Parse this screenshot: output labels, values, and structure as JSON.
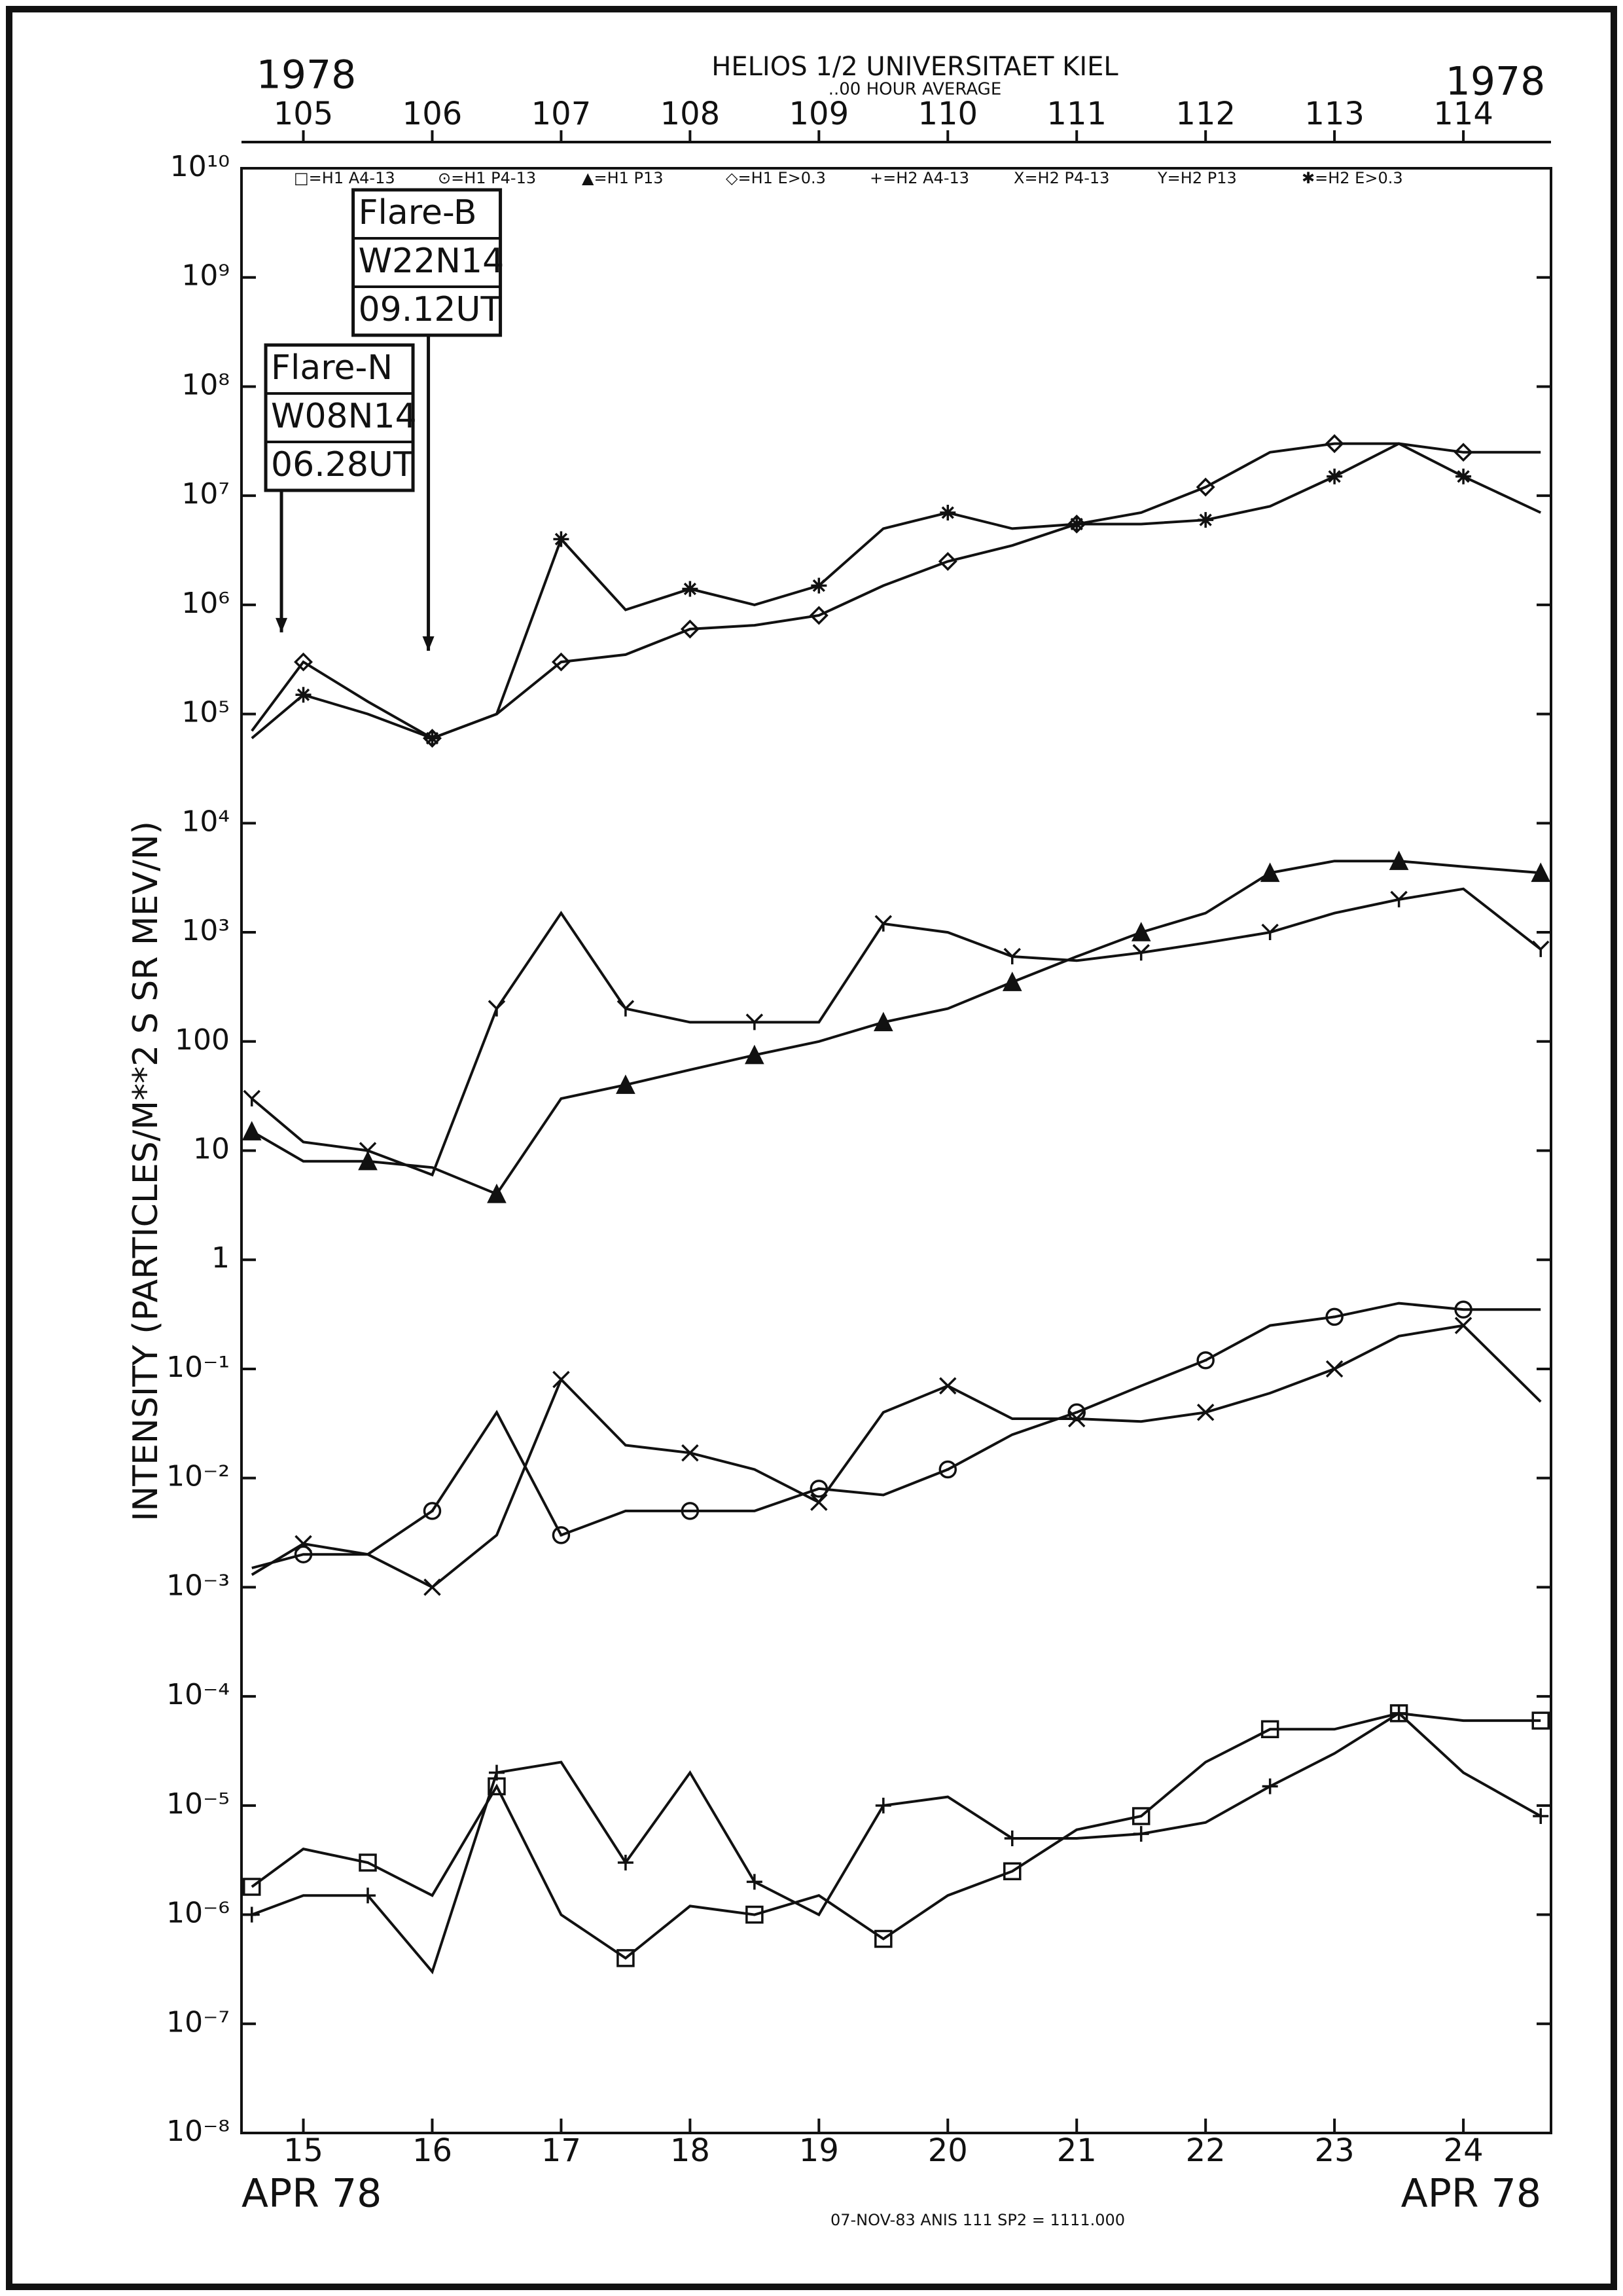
{
  "chart_data": {
    "type": "line",
    "title": "HELIOS 1/2  UNIVERSITAET KIEL",
    "subtitle": "..00 HOUR AVERAGE",
    "year_left": "1978",
    "year_right": "1978",
    "y_label": "INTENSITY (PARTICLES/M**2 S SR MEV/N)",
    "x_label_left": "APR 78",
    "x_label_right": "APR 78",
    "footer": "07-NOV-83 ANIS 111 SP2 = 1111.000",
    "log_y": true,
    "ylim": [
      1e-08,
      10000000000.0
    ],
    "yticks": [
      {
        "value": 10000000000.0,
        "label": "10¹⁰"
      },
      {
        "value": 1000000000.0,
        "label": "10⁹"
      },
      {
        "value": 100000000.0,
        "label": "10⁸"
      },
      {
        "value": 10000000.0,
        "label": "10⁷"
      },
      {
        "value": 1000000.0,
        "label": "10⁶"
      },
      {
        "value": 100000.0,
        "label": "10⁵"
      },
      {
        "value": 10000.0,
        "label": "10⁴"
      },
      {
        "value": 1000,
        "label": "10³"
      },
      100,
      10,
      1,
      {
        "value": 0.1,
        "label": "10⁻¹"
      },
      {
        "value": 0.01,
        "label": "10⁻²"
      },
      {
        "value": 0.001,
        "label": "10⁻³"
      },
      {
        "value": 0.0001,
        "label": "10⁻⁴"
      },
      {
        "value": 1e-05,
        "label": "10⁻⁵"
      },
      {
        "value": 1e-06,
        "label": "10⁻⁶"
      },
      {
        "value": 1e-07,
        "label": "10⁻⁷"
      },
      {
        "value": 1e-08,
        "label": "10⁻⁸"
      }
    ],
    "xlim": [
      14.52,
      24.68
    ],
    "xticks": [
      15,
      16,
      17,
      18,
      19,
      20,
      21,
      22,
      23,
      24
    ],
    "x2lim": [
      104.52,
      114.68
    ],
    "x2ticks": [
      105,
      106,
      107,
      108,
      109,
      110,
      111,
      112,
      113,
      114
    ],
    "x": [
      14.6,
      15,
      15.5,
      16,
      16.5,
      17,
      17.5,
      18,
      18.5,
      19,
      19.5,
      20,
      20.5,
      21,
      21.5,
      22,
      22.5,
      23,
      23.5,
      24,
      24.6
    ],
    "color": "#111111",
    "series": [
      {
        "name": "□=H1 A4-13",
        "marker": "square",
        "values": [
          1.8e-06,
          4e-06,
          3e-06,
          1.5e-06,
          1.5e-05,
          1e-06,
          4e-07,
          1.2e-06,
          1e-06,
          1.5e-06,
          6e-07,
          1.5e-06,
          2.5e-06,
          6e-06,
          8e-06,
          2.5e-05,
          5e-05,
          5e-05,
          7e-05,
          6e-05,
          6e-05
        ]
      },
      {
        "name": "⊙=H1 P4-13",
        "marker": "circle",
        "values": [
          0.0015,
          0.002,
          0.002,
          0.005,
          0.04,
          0.003,
          0.005,
          0.005,
          0.005,
          0.008,
          0.007,
          0.012,
          0.025,
          0.04,
          0.07,
          0.12,
          0.25,
          0.3,
          0.4,
          0.35,
          0.35
        ]
      },
      {
        "name": "▲=H1 P13",
        "marker": "triangle",
        "values": [
          15,
          8,
          8,
          7,
          4,
          30,
          40,
          55,
          75,
          100,
          150,
          200,
          350,
          600,
          1000,
          1500,
          3500,
          4500,
          4500,
          4000,
          3500
        ]
      },
      {
        "name": "◇=H1 E>0.3",
        "marker": "diamond",
        "values": [
          70000,
          300000,
          130000,
          60000,
          100000,
          300000,
          350000,
          600000,
          650000,
          800000,
          1500000,
          2500000,
          3500000,
          5500000,
          7000000,
          12000000,
          25000000,
          30000000,
          30000000,
          25000000,
          25000000
        ]
      },
      {
        "name": "+=H2 A4-13",
        "marker": "plus",
        "values": [
          1e-06,
          1.5e-06,
          1.5e-06,
          3e-07,
          2e-05,
          2.5e-05,
          3e-06,
          2e-05,
          2e-06,
          1e-06,
          1e-05,
          1.2e-05,
          5e-06,
          5e-06,
          5.5e-06,
          7e-06,
          1.5e-05,
          3e-05,
          7e-05,
          2e-05,
          8e-06
        ]
      },
      {
        "name": "X=H2 P4-13",
        "marker": "cross",
        "values": [
          0.0013,
          0.0025,
          0.002,
          0.001,
          0.003,
          0.08,
          0.02,
          0.017,
          0.012,
          0.006,
          0.04,
          0.07,
          0.035,
          0.035,
          0.033,
          0.04,
          0.06,
          0.1,
          0.2,
          0.25,
          0.05
        ]
      },
      {
        "name": "Y=H2 P13",
        "marker": "y",
        "values": [
          30,
          12,
          10,
          6,
          200,
          1500,
          200,
          150,
          150,
          150,
          1200,
          1000,
          600,
          550,
          650,
          800,
          1000,
          1500,
          2000,
          2500,
          700
        ]
      },
      {
        "name": "✱=H2 E>0.3",
        "marker": "asterisk",
        "values": [
          60000,
          150000,
          100000,
          60000,
          100000,
          4000000,
          900000,
          1400000,
          1000000,
          1500000,
          5000000,
          7000000,
          5000000,
          5500000,
          5500000,
          6000000,
          8000000,
          15000000,
          30000000,
          15000000,
          7000000
        ]
      }
    ],
    "annotations": [
      {
        "lines": [
          "Flare-N",
          "W08N14",
          "06.28UT"
        ],
        "x": 14.83,
        "y": 560000
      },
      {
        "lines": [
          "Flare-B",
          "W22N14",
          "09.12UT"
        ],
        "x": 15.97,
        "y": 380000
      }
    ]
  }
}
